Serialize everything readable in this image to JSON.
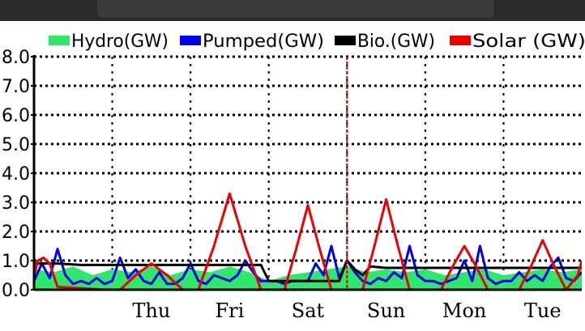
{
  "chart_data": {
    "type": "line",
    "title": "",
    "xlabel": "",
    "ylabel": "",
    "ylim": [
      0,
      8
    ],
    "y_ticks": [
      "0.0",
      "1.0",
      "2.0",
      "3.0",
      "4.0",
      "5.0",
      "6.0",
      "7.0",
      "8.0"
    ],
    "x_range": [
      0,
      7
    ],
    "day_labels": [
      {
        "label": "Thu",
        "x": 1.5
      },
      {
        "label": "Fri",
        "x": 2.5
      },
      {
        "label": "Sat",
        "x": 3.5
      },
      {
        "label": "Sun",
        "x": 4.5
      },
      {
        "label": "Mon",
        "x": 5.5
      },
      {
        "label": "Tue",
        "x": 6.5
      }
    ],
    "day_boundaries": [
      1,
      2,
      3,
      4,
      5,
      6,
      7
    ],
    "current_time_x": 4.0,
    "grid": true,
    "legend_position": "top",
    "series": [
      {
        "name": "Hydro(GW)",
        "color": "#2ee86a",
        "kind": "area",
        "x": [
          0,
          0.25,
          0.5,
          0.75,
          1.0,
          1.25,
          1.5,
          1.75,
          2.0,
          2.25,
          2.5,
          2.75,
          3.0,
          3.25,
          3.5,
          3.75,
          4.0,
          4.25,
          4.5,
          4.75,
          5.0,
          5.25,
          5.5,
          5.75,
          6.0,
          6.25,
          6.5,
          6.75,
          7.0
        ],
        "values": [
          0.7,
          0.6,
          0.8,
          0.5,
          0.7,
          0.6,
          0.8,
          0.5,
          0.7,
          0.6,
          0.8,
          0.6,
          0.3,
          0.5,
          0.6,
          0.7,
          0.8,
          0.6,
          0.7,
          0.6,
          0.7,
          0.5,
          0.6,
          0.7,
          0.5,
          0.6,
          0.7,
          0.6,
          0.7
        ]
      },
      {
        "name": "Pumped(GW)",
        "color": "#0000ee",
        "kind": "line",
        "x": [
          0,
          0.1,
          0.2,
          0.3,
          0.4,
          0.5,
          0.6,
          0.7,
          0.8,
          0.9,
          1.0,
          1.1,
          1.2,
          1.3,
          1.4,
          1.5,
          1.6,
          1.7,
          1.8,
          1.9,
          2.0,
          2.1,
          2.2,
          2.3,
          2.4,
          2.5,
          2.6,
          2.7,
          2.8,
          2.9,
          3.0,
          3.1,
          3.2,
          3.3,
          3.4,
          3.5,
          3.6,
          3.7,
          3.8,
          3.9,
          4.0,
          4.1,
          4.2,
          4.3,
          4.4,
          4.5,
          4.6,
          4.7,
          4.8,
          4.9,
          5.0,
          5.1,
          5.2,
          5.3,
          5.4,
          5.5,
          5.6,
          5.7,
          5.8,
          5.9,
          6.0,
          6.1,
          6.2,
          6.3,
          6.4,
          6.5,
          6.6,
          6.7,
          6.8,
          6.9,
          7.0
        ],
        "values": [
          0.3,
          0.9,
          0.4,
          1.4,
          0.5,
          0.2,
          0.3,
          0.2,
          0.4,
          0.2,
          0.3,
          1.1,
          0.4,
          0.7,
          0.3,
          0.2,
          0.6,
          0.2,
          0.2,
          0.4,
          0.9,
          0.3,
          0.2,
          0.5,
          0.4,
          0.3,
          0.5,
          1.0,
          0.6,
          0.3,
          0.3,
          0.3,
          0.2,
          0.3,
          0.3,
          0.3,
          0.9,
          0.5,
          1.5,
          0.4,
          1.0,
          0.6,
          0.3,
          0.2,
          0.4,
          0.3,
          0.6,
          0.4,
          1.5,
          0.5,
          0.3,
          0.3,
          0.2,
          0.3,
          0.4,
          1.0,
          0.3,
          1.5,
          0.4,
          0.2,
          0.3,
          0.3,
          0.6,
          0.3,
          0.5,
          0.3,
          0.8,
          1.1,
          0.4,
          0.3,
          0.6
        ]
      },
      {
        "name": "Bio.(GW)",
        "color": "#000000",
        "kind": "line",
        "x": [
          0,
          0.3,
          0.6,
          1.0,
          1.5,
          2.0,
          2.5,
          2.9,
          3.0,
          3.5,
          3.9,
          4.0,
          4.1,
          4.2,
          4.3,
          4.5,
          5.0,
          5.5,
          6.0,
          6.5,
          7.0
        ],
        "values": [
          0.9,
          0.9,
          0.85,
          0.85,
          0.85,
          0.85,
          0.85,
          0.85,
          0.3,
          0.3,
          0.3,
          1.0,
          0.7,
          0.5,
          0.8,
          0.75,
          0.75,
          0.75,
          0.75,
          0.75,
          0.75
        ]
      },
      {
        "name": "Solar (GW)",
        "color": "#ee0000",
        "kind": "line",
        "x": [
          0,
          0.05,
          0.12,
          0.2,
          0.3,
          0.9,
          1.1,
          1.3,
          1.5,
          1.7,
          1.9,
          2.1,
          2.3,
          2.5,
          2.7,
          2.9,
          3.2,
          3.35,
          3.5,
          3.65,
          3.8,
          4.2,
          4.35,
          4.5,
          4.65,
          4.8,
          5.2,
          5.35,
          5.5,
          5.65,
          5.8,
          6.2,
          6.35,
          6.5,
          6.65,
          6.8,
          6.95,
          7.0
        ],
        "values": [
          0.5,
          1.0,
          1.1,
          0.9,
          0.1,
          0.0,
          0.0,
          0.5,
          0.9,
          0.5,
          0.0,
          0.0,
          1.5,
          3.3,
          1.5,
          0.0,
          0.0,
          1.4,
          2.9,
          1.4,
          0.0,
          0.0,
          1.5,
          3.1,
          1.5,
          0.0,
          0.0,
          0.8,
          1.5,
          0.8,
          0.0,
          0.0,
          0.8,
          1.7,
          0.8,
          0.0,
          0.5,
          1.0
        ]
      }
    ]
  }
}
